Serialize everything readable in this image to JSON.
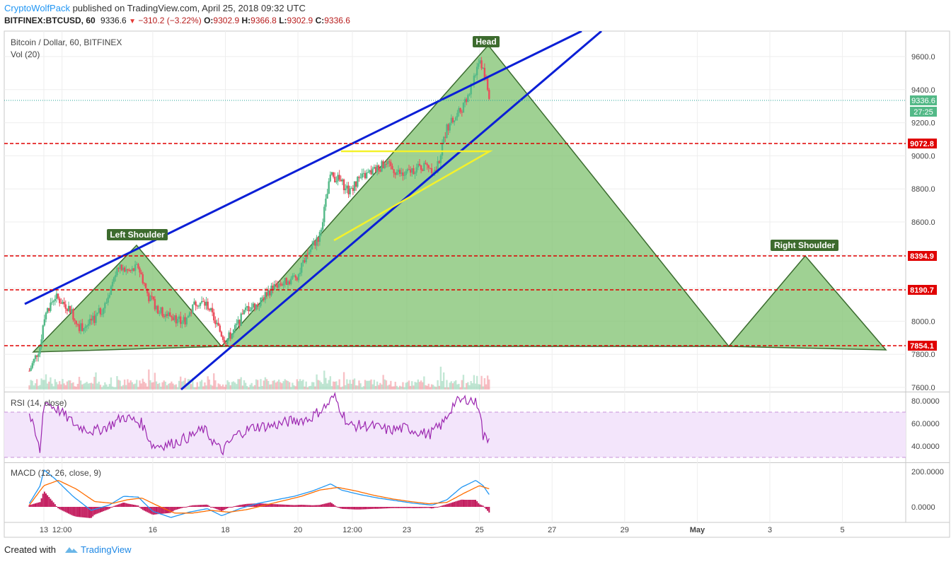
{
  "header": {
    "author": "CryptoWolfPack",
    "published_text": " published on TradingView.com, April 25, 2018 09:32 UTC"
  },
  "ticker": {
    "symbol": "BITFINEX:BTCUSD, 60",
    "last": "9336.6",
    "change": "−310.2 (−3.22%)",
    "o_label": "O:",
    "o_value": "9302.9",
    "h_label": "H:",
    "h_value": "9366.8",
    "l_label": "L:",
    "l_value": "9302.9",
    "c_label": "C:",
    "c_value": "9336.6",
    "arrow": "▼"
  },
  "legend": {
    "title": "Bitcoin / Dollar, 60, BITFINEX",
    "volume": "Vol (20)",
    "rsi": "RSI (14, close)",
    "macd": "MACD (12, 26, close, 9)"
  },
  "annotations": {
    "left_shoulder": "Left Shoulder",
    "head": "Head",
    "right_shoulder": "Right Shoulder"
  },
  "price_badges": {
    "current": "9336.6",
    "countdown": "27:25",
    "r1": "9072.8",
    "r2": "8394.9",
    "r3": "8190.7",
    "r4": "7854.1"
  },
  "colors": {
    "up": "#53b987",
    "down": "#eb4d5c",
    "trend": "#0b1fd6",
    "wedge": "#f4f12a",
    "hs_fill": "#7fc26f",
    "hs_stroke": "#3a6b2e",
    "level": "#e00000",
    "rsi": "#9c27b0",
    "macd": "#2196f3",
    "signal": "#ff6d00",
    "hist": "#c2185b"
  },
  "footer": {
    "created_with": "Created with",
    "brand": "TradingView"
  },
  "chart_data": [
    {
      "type": "candlestick",
      "title": "Bitcoin / Dollar, 60, BITFINEX",
      "x_tick_labels": [
        "13",
        "12:00",
        "16",
        "18",
        "20",
        "12:00",
        "23",
        "25",
        "27",
        "29",
        "May",
        "3",
        "5"
      ],
      "y_tick_labels": [
        "7600.0",
        "7800.0",
        "8000.0",
        "8200.0",
        "8400.0",
        "8600.0",
        "8800.0",
        "9000.0",
        "9200.0",
        "9400.0",
        "9600.0"
      ],
      "ylim": [
        7580,
        9750
      ],
      "approx_close_path": [
        [
          12.6,
          7700
        ],
        [
          12.9,
          7850
        ],
        [
          13.0,
          8030
        ],
        [
          13.3,
          8150
        ],
        [
          13.7,
          8080
        ],
        [
          14.0,
          7960
        ],
        [
          14.3,
          7990
        ],
        [
          14.7,
          8100
        ],
        [
          15.0,
          8320
        ],
        [
          15.4,
          8300
        ],
        [
          15.6,
          8330
        ],
        [
          15.9,
          8140
        ],
        [
          16.2,
          8060
        ],
        [
          16.6,
          8020
        ],
        [
          16.9,
          8000
        ],
        [
          17.2,
          8120
        ],
        [
          17.5,
          8100
        ],
        [
          17.8,
          7960
        ],
        [
          18.0,
          7880
        ],
        [
          18.2,
          7930
        ],
        [
          18.6,
          8080
        ],
        [
          18.9,
          8100
        ],
        [
          19.1,
          8160
        ],
        [
          19.4,
          8220
        ],
        [
          19.7,
          8240
        ],
        [
          20.0,
          8280
        ],
        [
          20.3,
          8420
        ],
        [
          20.6,
          8520
        ],
        [
          20.9,
          8880
        ],
        [
          21.1,
          8860
        ],
        [
          21.4,
          8790
        ],
        [
          21.7,
          8860
        ],
        [
          22.0,
          8900
        ],
        [
          22.4,
          8950
        ],
        [
          22.6,
          8920
        ],
        [
          22.9,
          8880
        ],
        [
          23.2,
          8920
        ],
        [
          23.6,
          8940
        ],
        [
          23.8,
          8900
        ],
        [
          24.1,
          9170
        ],
        [
          24.4,
          9250
        ],
        [
          24.7,
          9350
        ],
        [
          25.0,
          9600
        ],
        [
          25.15,
          9470
        ],
        [
          25.3,
          9336.6
        ]
      ],
      "horizontal_levels": [
        9072.8,
        8394.9,
        8190.7,
        7854.1
      ],
      "current_price": 9336.6
    },
    {
      "type": "line",
      "title": "RSI (14, close)",
      "y_tick_labels": [
        "40.0000",
        "60.0000",
        "80.0000"
      ],
      "ylim": [
        28,
        88
      ],
      "bands": [
        70,
        30
      ],
      "approx_values": [
        [
          12.6,
          68
        ],
        [
          12.9,
          35
        ],
        [
          13.0,
          80
        ],
        [
          13.4,
          72
        ],
        [
          13.9,
          58
        ],
        [
          14.4,
          53
        ],
        [
          14.8,
          58
        ],
        [
          15.2,
          66
        ],
        [
          15.7,
          60
        ],
        [
          16.0,
          40
        ],
        [
          16.5,
          42
        ],
        [
          17.0,
          48
        ],
        [
          17.4,
          55
        ],
        [
          17.9,
          35
        ],
        [
          18.3,
          50
        ],
        [
          18.8,
          57
        ],
        [
          19.3,
          58
        ],
        [
          19.8,
          62
        ],
        [
          20.3,
          64
        ],
        [
          20.8,
          76
        ],
        [
          21.0,
          84
        ],
        [
          21.4,
          58
        ],
        [
          22.0,
          58
        ],
        [
          22.5,
          54
        ],
        [
          23.0,
          56
        ],
        [
          23.6,
          50
        ],
        [
          24.0,
          60
        ],
        [
          24.3,
          78
        ],
        [
          24.7,
          82
        ],
        [
          25.0,
          76
        ],
        [
          25.1,
          48
        ],
        [
          25.3,
          47
        ]
      ]
    },
    {
      "type": "line",
      "title": "MACD (12, 26, close, 9)",
      "y_tick_labels": [
        "0.0000",
        "200.0000"
      ],
      "ylim": [
        -80,
        240
      ],
      "series": [
        {
          "name": "MACD",
          "values": [
            [
              12.6,
              20
            ],
            [
              12.9,
              120
            ],
            [
              13.0,
              210
            ],
            [
              13.3,
              160
            ],
            [
              13.8,
              60
            ],
            [
              14.3,
              -20
            ],
            [
              14.8,
              10
            ],
            [
              15.2,
              60
            ],
            [
              15.6,
              55
            ],
            [
              16.0,
              -25
            ],
            [
              16.5,
              -60
            ],
            [
              17.0,
              -30
            ],
            [
              17.5,
              -10
            ],
            [
              17.9,
              -50
            ],
            [
              18.4,
              -10
            ],
            [
              18.9,
              20
            ],
            [
              19.4,
              40
            ],
            [
              19.9,
              60
            ],
            [
              20.4,
              90
            ],
            [
              20.9,
              130
            ],
            [
              21.2,
              95
            ],
            [
              21.7,
              70
            ],
            [
              22.2,
              50
            ],
            [
              22.7,
              35
            ],
            [
              23.2,
              20
            ],
            [
              23.7,
              10
            ],
            [
              24.1,
              40
            ],
            [
              24.5,
              110
            ],
            [
              24.9,
              150
            ],
            [
              25.1,
              120
            ],
            [
              25.3,
              60
            ]
          ]
        },
        {
          "name": "Signal",
          "values": [
            [
              12.6,
              10
            ],
            [
              13.0,
              120
            ],
            [
              13.4,
              150
            ],
            [
              13.9,
              100
            ],
            [
              14.4,
              30
            ],
            [
              14.9,
              20
            ],
            [
              15.3,
              40
            ],
            [
              15.7,
              50
            ],
            [
              16.1,
              10
            ],
            [
              16.6,
              -35
            ],
            [
              17.1,
              -35
            ],
            [
              17.6,
              -20
            ],
            [
              18.1,
              -30
            ],
            [
              18.6,
              -15
            ],
            [
              19.1,
              10
            ],
            [
              19.6,
              35
            ],
            [
              20.1,
              60
            ],
            [
              20.6,
              95
            ],
            [
              21.1,
              110
            ],
            [
              21.6,
              90
            ],
            [
              22.1,
              65
            ],
            [
              22.6,
              45
            ],
            [
              23.1,
              30
            ],
            [
              23.6,
              18
            ],
            [
              24.1,
              25
            ],
            [
              24.6,
              80
            ],
            [
              25.0,
              120
            ],
            [
              25.3,
              100
            ]
          ]
        }
      ]
    }
  ]
}
